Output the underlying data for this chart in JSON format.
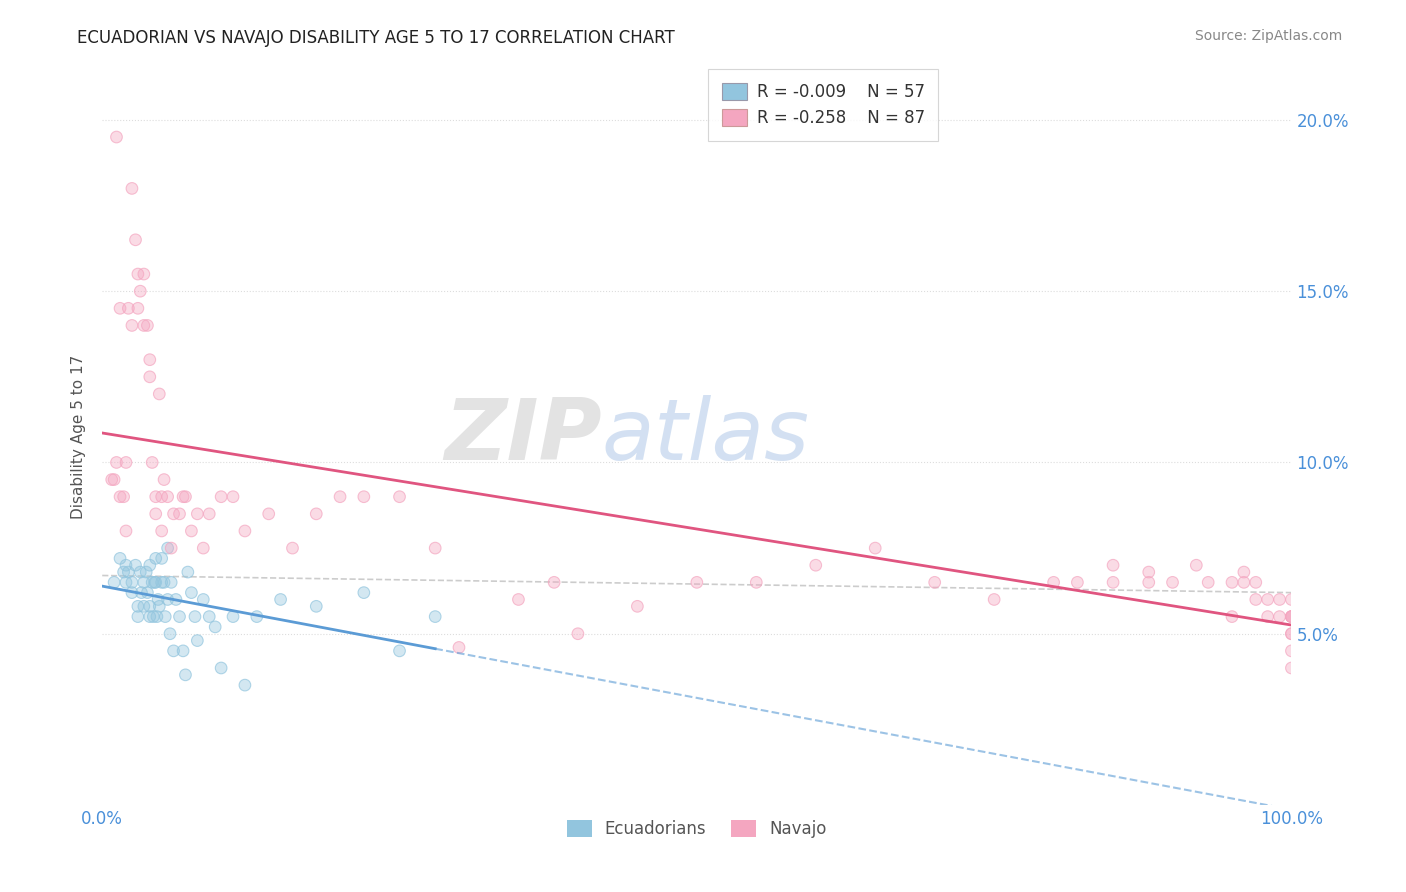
{
  "title": "ECUADORIAN VS NAVAJO DISABILITY AGE 5 TO 17 CORRELATION CHART",
  "source": "Source: ZipAtlas.com",
  "ylabel": "Disability Age 5 to 17",
  "xmin": 0.0,
  "xmax": 1.0,
  "ymin": 0.0,
  "ymax": 0.215,
  "yticks": [
    0.05,
    0.1,
    0.15,
    0.2
  ],
  "ytick_labels": [
    "5.0%",
    "10.0%",
    "15.0%",
    "20.0%"
  ],
  "xtick_labels": [
    "0.0%",
    "100.0%"
  ],
  "legend_r1": "R = -0.009",
  "legend_n1": "N = 57",
  "legend_r2": "R = -0.258",
  "legend_n2": "N = 87",
  "color_blue": "#92c5de",
  "color_pink": "#f4a6c0",
  "line_blue": "#5b9bd5",
  "line_pink": "#e05580",
  "line_dash_color": "#aaaacc",
  "background": "#ffffff",
  "grid_color": "#dddddd",
  "ecuadorians_x": [
    0.01,
    0.015,
    0.018,
    0.02,
    0.02,
    0.022,
    0.025,
    0.025,
    0.028,
    0.03,
    0.03,
    0.032,
    0.033,
    0.035,
    0.035,
    0.037,
    0.038,
    0.04,
    0.04,
    0.04,
    0.042,
    0.043,
    0.044,
    0.045,
    0.045,
    0.046,
    0.047,
    0.048,
    0.05,
    0.05,
    0.052,
    0.053,
    0.055,
    0.055,
    0.057,
    0.058,
    0.06,
    0.062,
    0.065,
    0.068,
    0.07,
    0.072,
    0.075,
    0.078,
    0.08,
    0.085,
    0.09,
    0.095,
    0.1,
    0.11,
    0.12,
    0.13,
    0.15,
    0.18,
    0.22,
    0.25,
    0.28
  ],
  "ecuadorians_y": [
    0.065,
    0.072,
    0.068,
    0.07,
    0.065,
    0.068,
    0.062,
    0.065,
    0.07,
    0.058,
    0.055,
    0.068,
    0.062,
    0.065,
    0.058,
    0.068,
    0.062,
    0.058,
    0.055,
    0.07,
    0.065,
    0.055,
    0.065,
    0.072,
    0.065,
    0.055,
    0.06,
    0.058,
    0.065,
    0.072,
    0.065,
    0.055,
    0.06,
    0.075,
    0.05,
    0.065,
    0.045,
    0.06,
    0.055,
    0.045,
    0.038,
    0.068,
    0.062,
    0.055,
    0.048,
    0.06,
    0.055,
    0.052,
    0.04,
    0.055,
    0.035,
    0.055,
    0.06,
    0.058,
    0.062,
    0.045,
    0.055
  ],
  "navajo_x": [
    0.008,
    0.01,
    0.012,
    0.012,
    0.015,
    0.015,
    0.018,
    0.02,
    0.02,
    0.022,
    0.025,
    0.025,
    0.028,
    0.03,
    0.03,
    0.032,
    0.035,
    0.035,
    0.038,
    0.04,
    0.04,
    0.042,
    0.045,
    0.045,
    0.048,
    0.05,
    0.05,
    0.052,
    0.055,
    0.058,
    0.06,
    0.065,
    0.068,
    0.07,
    0.075,
    0.08,
    0.085,
    0.09,
    0.1,
    0.11,
    0.12,
    0.14,
    0.16,
    0.18,
    0.2,
    0.22,
    0.25,
    0.28,
    0.3,
    0.35,
    0.38,
    0.4,
    0.45,
    0.5,
    0.55,
    0.6,
    0.65,
    0.7,
    0.75,
    0.8,
    0.82,
    0.85,
    0.85,
    0.88,
    0.88,
    0.9,
    0.92,
    0.93,
    0.95,
    0.95,
    0.96,
    0.96,
    0.97,
    0.97,
    0.98,
    0.98,
    0.99,
    0.99,
    1.0,
    1.0,
    1.0,
    1.0,
    1.0,
    1.0,
    1.0,
    1.0,
    1.0
  ],
  "navajo_y": [
    0.095,
    0.095,
    0.1,
    0.195,
    0.09,
    0.145,
    0.09,
    0.1,
    0.08,
    0.145,
    0.14,
    0.18,
    0.165,
    0.145,
    0.155,
    0.15,
    0.155,
    0.14,
    0.14,
    0.13,
    0.125,
    0.1,
    0.085,
    0.09,
    0.12,
    0.08,
    0.09,
    0.095,
    0.09,
    0.075,
    0.085,
    0.085,
    0.09,
    0.09,
    0.08,
    0.085,
    0.075,
    0.085,
    0.09,
    0.09,
    0.08,
    0.085,
    0.075,
    0.085,
    0.09,
    0.09,
    0.09,
    0.075,
    0.046,
    0.06,
    0.065,
    0.05,
    0.058,
    0.065,
    0.065,
    0.07,
    0.075,
    0.065,
    0.06,
    0.065,
    0.065,
    0.065,
    0.07,
    0.065,
    0.068,
    0.065,
    0.07,
    0.065,
    0.065,
    0.055,
    0.068,
    0.065,
    0.065,
    0.06,
    0.055,
    0.06,
    0.055,
    0.06,
    0.055,
    0.06,
    0.055,
    0.05,
    0.055,
    0.05,
    0.055,
    0.04,
    0.045
  ],
  "blue_line_solid_end": 0.28,
  "pink_line_start_y": 0.087,
  "pink_line_end_y": 0.049,
  "blue_line_y": 0.065,
  "dash_line_start_y": 0.067,
  "dash_line_end_y": 0.062
}
